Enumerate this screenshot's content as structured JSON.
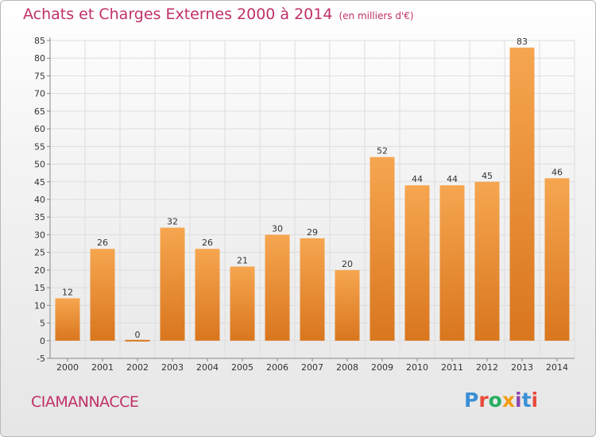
{
  "header": {
    "title": "Achats et Charges Externes 2000 à 2014",
    "subtitle": "(en milliers d'€)"
  },
  "footer": {
    "place": "CIAMANNACCE",
    "logo_text": "Proxiti"
  },
  "colors": {
    "title": "#c0306a",
    "bar_top": "#f6a650",
    "bar_bottom": "#d9761e",
    "grid": "#dddddd",
    "logo_letters": [
      "#3b8fd6",
      "#e74c3c",
      "#27ae60",
      "#f39c12",
      "#8e44ad",
      "#3b8fd6",
      "#e74c3c"
    ]
  },
  "chart_data": {
    "type": "bar",
    "categories": [
      "2000",
      "2001",
      "2002",
      "2003",
      "2004",
      "2005",
      "2006",
      "2007",
      "2008",
      "2009",
      "2010",
      "2011",
      "2012",
      "2013",
      "2014"
    ],
    "values": [
      12,
      26,
      0,
      32,
      26,
      21,
      30,
      29,
      20,
      52,
      44,
      44,
      45,
      83,
      46
    ],
    "ylim": [
      -5,
      85
    ],
    "yticks": [
      -5,
      0,
      5,
      10,
      15,
      20,
      25,
      30,
      35,
      40,
      45,
      50,
      55,
      60,
      65,
      70,
      75,
      80,
      85
    ],
    "grid": true,
    "show_value_labels": true
  }
}
